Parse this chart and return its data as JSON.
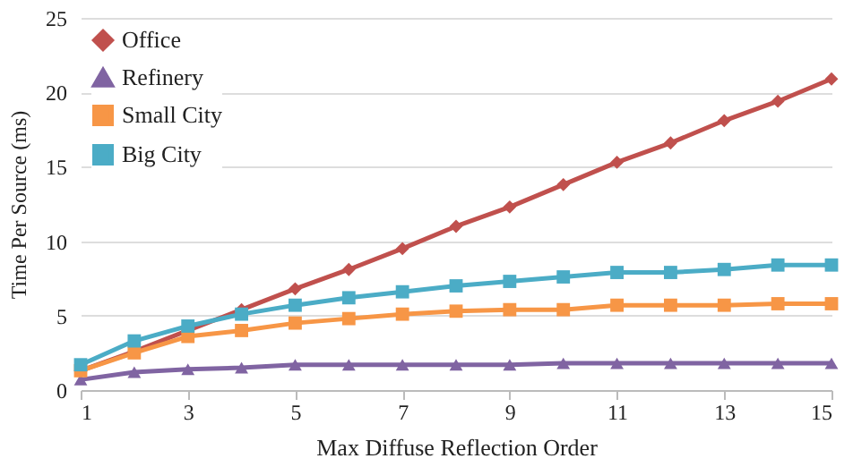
{
  "chart_data": {
    "type": "line",
    "xlabel": "Max Diffuse Reflection Order",
    "ylabel": "Time Per Source (ms)",
    "x": [
      1,
      2,
      3,
      4,
      5,
      6,
      7,
      8,
      9,
      10,
      11,
      12,
      13,
      14,
      15
    ],
    "xlim": [
      1,
      15
    ],
    "xticks": [
      1,
      3,
      5,
      7,
      9,
      11,
      13,
      15
    ],
    "ylim": [
      0,
      25
    ],
    "yticks": [
      0,
      5,
      10,
      15,
      20,
      25
    ],
    "grid": "y",
    "legend": "top left",
    "series": [
      {
        "name": "Office",
        "color": "#c0504d",
        "marker": "diamond",
        "values": [
          1.3,
          2.6,
          4.0,
          5.4,
          6.8,
          8.1,
          9.5,
          11.0,
          12.3,
          13.8,
          15.3,
          16.6,
          18.1,
          19.4,
          20.9
        ]
      },
      {
        "name": "Refinery",
        "color": "#8064a2",
        "marker": "triangle",
        "values": [
          0.7,
          1.2,
          1.4,
          1.5,
          1.7,
          1.7,
          1.7,
          1.7,
          1.7,
          1.8,
          1.8,
          1.8,
          1.8,
          1.8,
          1.8
        ]
      },
      {
        "name": "Small City",
        "color": "#f79646",
        "marker": "square",
        "values": [
          1.3,
          2.5,
          3.6,
          4.0,
          4.5,
          4.8,
          5.1,
          5.3,
          5.4,
          5.4,
          5.7,
          5.7,
          5.7,
          5.8,
          5.8
        ]
      },
      {
        "name": "Big City",
        "color": "#4bacc6",
        "marker": "square",
        "values": [
          1.7,
          3.3,
          4.3,
          5.1,
          5.7,
          6.2,
          6.6,
          7.0,
          7.3,
          7.6,
          7.9,
          7.9,
          8.1,
          8.4,
          8.4
        ]
      }
    ]
  }
}
